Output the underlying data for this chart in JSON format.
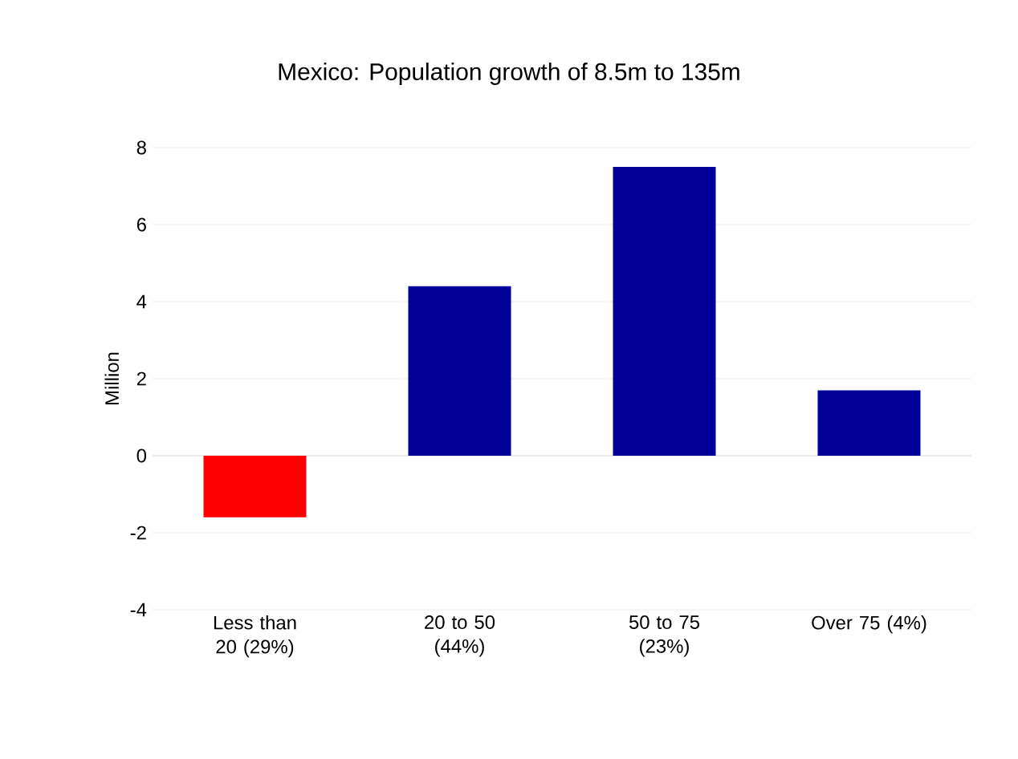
{
  "chart_data": {
    "type": "bar",
    "title": "Mexico: Population growth of 8.5m to 135m",
    "ylabel": "Million",
    "categories": [
      "Less than 20 (29%)",
      "20 to 50 (44%)",
      "50 to 75 (23%)",
      "Over 75 (4%)"
    ],
    "values": [
      -1.6,
      4.4,
      7.5,
      1.7
    ],
    "colors": [
      "#ff0000",
      "#000099",
      "#000099",
      "#000099"
    ],
    "ylim": [
      -4,
      8
    ],
    "yticks": [
      -4,
      -2,
      0,
      2,
      4,
      6,
      8
    ],
    "grid": "y"
  }
}
